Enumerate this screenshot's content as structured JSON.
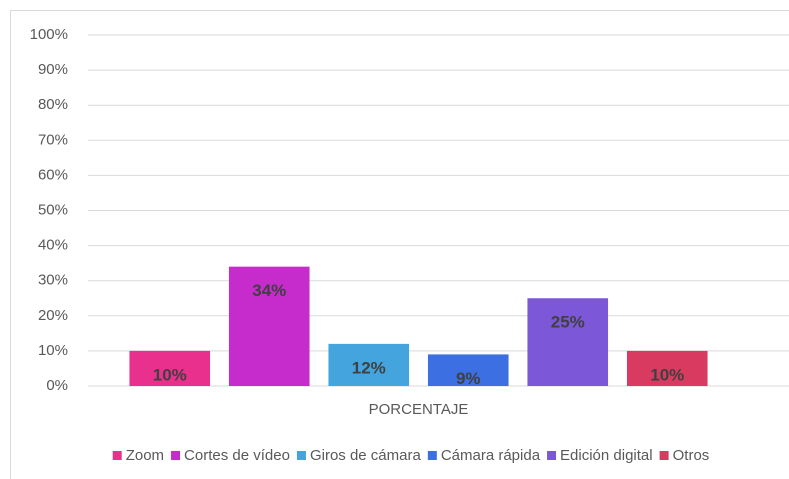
{
  "chart_data": {
    "type": "bar",
    "categories": [
      "PORCENTAJE"
    ],
    "series": [
      {
        "name": "Zoom",
        "color": "#e8308c",
        "values": [
          10
        ],
        "value_labels": [
          "10%"
        ]
      },
      {
        "name": "Cortes de vídeo",
        "color": "#c52ccb",
        "values": [
          34
        ],
        "value_labels": [
          "34%"
        ]
      },
      {
        "name": "Giros de cámara",
        "color": "#43a4de",
        "values": [
          12
        ],
        "value_labels": [
          "12%"
        ]
      },
      {
        "name": "Cámara rápida",
        "color": "#3b6fe2",
        "values": [
          9
        ],
        "value_labels": [
          "9%"
        ]
      },
      {
        "name": "Edición digital",
        "color": "#7c57d8",
        "values": [
          25
        ],
        "value_labels": [
          "25%"
        ]
      },
      {
        "name": "Otros",
        "color": "#d93a60",
        "values": [
          10
        ],
        "value_labels": [
          "10%"
        ]
      }
    ],
    "ylim": [
      0,
      100
    ],
    "yticks": [
      {
        "value": 0,
        "label": "0%"
      },
      {
        "value": 10,
        "label": "10%"
      },
      {
        "value": 20,
        "label": "20%"
      },
      {
        "value": 30,
        "label": "30%"
      },
      {
        "value": 40,
        "label": "40%"
      },
      {
        "value": 50,
        "label": "50%"
      },
      {
        "value": 60,
        "label": "60%"
      },
      {
        "value": 70,
        "label": "70%"
      },
      {
        "value": 80,
        "label": "80%"
      },
      {
        "value": 90,
        "label": "90%"
      },
      {
        "value": 100,
        "label": "100%"
      }
    ],
    "grid": true,
    "legend": "bottom"
  }
}
